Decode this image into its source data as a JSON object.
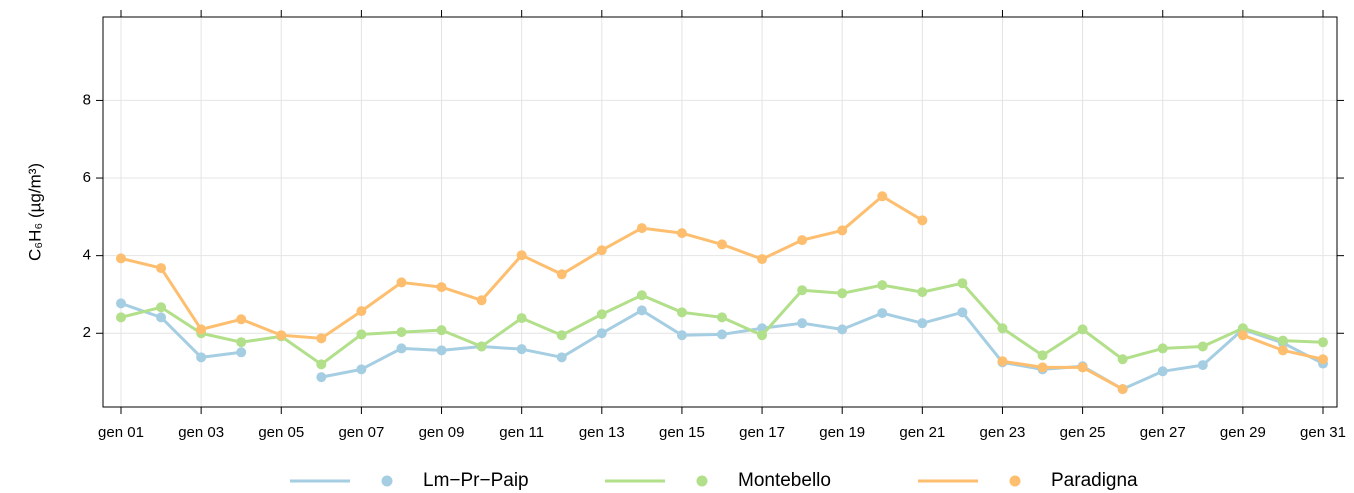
{
  "chart_data": {
    "type": "line",
    "y_label": "C₆H₆ (µg/m³)",
    "categories": [
      "gen 01",
      null,
      "gen 03",
      null,
      "gen 05",
      null,
      "gen 07",
      null,
      "gen 09",
      null,
      "gen 11",
      null,
      "gen 13",
      null,
      "gen 15",
      null,
      "gen 17",
      null,
      "gen 19",
      null,
      "gen 21",
      null,
      "gen 23",
      null,
      "gen 25",
      null,
      "gen 27",
      null,
      "gen 29",
      null,
      "gen 31"
    ],
    "series": [
      {
        "name": "Lm−Pr−Paip",
        "color": "#a6cee3",
        "values": [
          2.77,
          2.41,
          1.38,
          1.51,
          null,
          0.87,
          1.07,
          1.61,
          1.56,
          1.66,
          1.59,
          1.38,
          2.0,
          2.59,
          1.95,
          1.97,
          2.13,
          2.26,
          2.1,
          2.52,
          2.26,
          2.54,
          1.25,
          1.07,
          1.15,
          0.56,
          1.02,
          1.18,
          2.1,
          1.75,
          1.22
        ]
      },
      {
        "name": "Montebello",
        "color": "#b2df8a",
        "values": [
          2.41,
          2.67,
          2.0,
          1.77,
          1.92,
          1.2,
          1.97,
          2.03,
          2.08,
          1.66,
          2.39,
          1.95,
          2.49,
          2.98,
          2.54,
          2.41,
          1.95,
          3.11,
          3.03,
          3.24,
          3.06,
          3.29,
          2.13,
          1.43,
          2.1,
          1.33,
          1.61,
          1.66,
          2.13,
          1.81,
          1.77
        ]
      },
      {
        "name": "Paradigna",
        "color": "#fdbf6f",
        "values": [
          3.93,
          3.68,
          2.1,
          2.36,
          1.95,
          1.87,
          2.57,
          3.31,
          3.19,
          2.85,
          4.01,
          3.52,
          4.14,
          4.71,
          4.58,
          4.29,
          3.91,
          4.4,
          4.65,
          5.53,
          4.91,
          null,
          1.28,
          1.12,
          1.12,
          0.56,
          null,
          null,
          1.95,
          1.56,
          1.33
        ]
      }
    ],
    "ylim": [
      0.1,
      10.15
    ],
    "yticks": [
      2,
      4,
      6,
      8
    ],
    "grid": true
  }
}
